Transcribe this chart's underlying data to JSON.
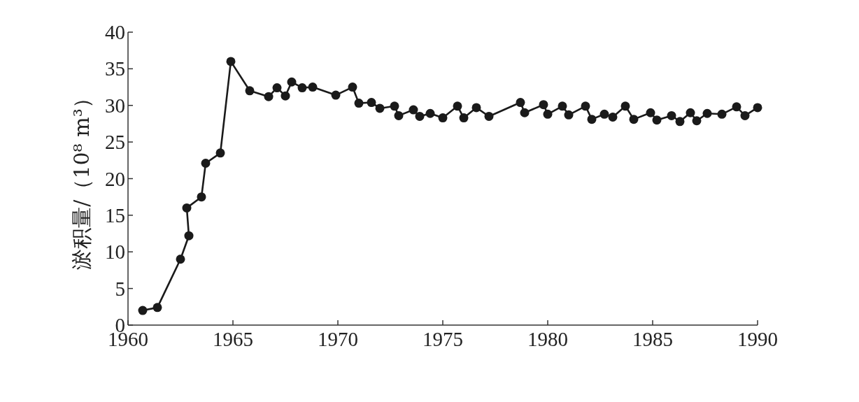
{
  "chart_data": {
    "type": "line",
    "ylabel": "淤积量/（10⁸ m³）",
    "x": [
      1960.7,
      1961.4,
      1962.5,
      1962.9,
      1962.8,
      1963.5,
      1963.7,
      1964.4,
      1964.9,
      1965.8,
      1966.7,
      1967.1,
      1967.5,
      1967.8,
      1968.3,
      1968.8,
      1969.9,
      1970.7,
      1971.0,
      1971.6,
      1972.0,
      1972.7,
      1972.9,
      1973.6,
      1973.9,
      1974.4,
      1975.0,
      1975.7,
      1976.0,
      1976.6,
      1977.2,
      1978.7,
      1978.9,
      1979.8,
      1980.0,
      1980.7,
      1981.0,
      1981.8,
      1982.1,
      1982.7,
      1983.1,
      1983.7,
      1984.1,
      1984.9,
      1985.2,
      1985.9,
      1986.3,
      1986.8,
      1987.1,
      1987.6,
      1988.3,
      1989.0,
      1989.4,
      1990.0
    ],
    "values": [
      2.0,
      2.4,
      9.0,
      12.2,
      16.0,
      17.5,
      22.1,
      23.5,
      36.0,
      32.0,
      31.2,
      32.4,
      31.3,
      33.2,
      32.4,
      32.5,
      31.4,
      32.5,
      30.3,
      30.4,
      29.6,
      29.9,
      28.6,
      29.4,
      28.5,
      28.9,
      28.3,
      29.9,
      28.3,
      29.7,
      28.5,
      30.4,
      29.0,
      30.1,
      28.8,
      29.9,
      28.7,
      29.9,
      28.1,
      28.8,
      28.4,
      29.9,
      28.1,
      29.0,
      28.0,
      28.6,
      27.8,
      29.0,
      27.9,
      28.9,
      28.8,
      29.8,
      28.6,
      29.7
    ],
    "color": "#1a1a1a",
    "marker": "circle",
    "line_style": "solid",
    "xlim": [
      1960,
      1990
    ],
    "xticks": [
      1960,
      1965,
      1970,
      1975,
      1980,
      1985,
      1990
    ],
    "ylim": [
      0,
      40
    ],
    "yticks": [
      0,
      5,
      10,
      15,
      20,
      25,
      30,
      35,
      40
    ]
  }
}
